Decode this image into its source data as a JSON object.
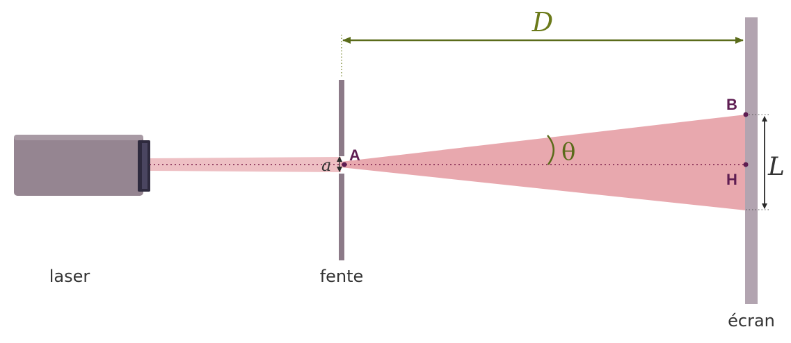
{
  "labels": {
    "laser": "laser",
    "fente": "fente",
    "ecran": "écran",
    "D": "D",
    "L": "L",
    "a": "a",
    "theta": "θ",
    "A": "A",
    "B": "B",
    "H": "H"
  },
  "colors": {
    "beam": "#e8a8ae",
    "laser_body": "#958591",
    "laser_head": "#2e2a3e",
    "slit": "#8c7a88",
    "screen": "#b2a4b0",
    "dimension": "#5a6b1a",
    "points": "#5e1d52",
    "axis_dots": "#7a1d4a"
  }
}
